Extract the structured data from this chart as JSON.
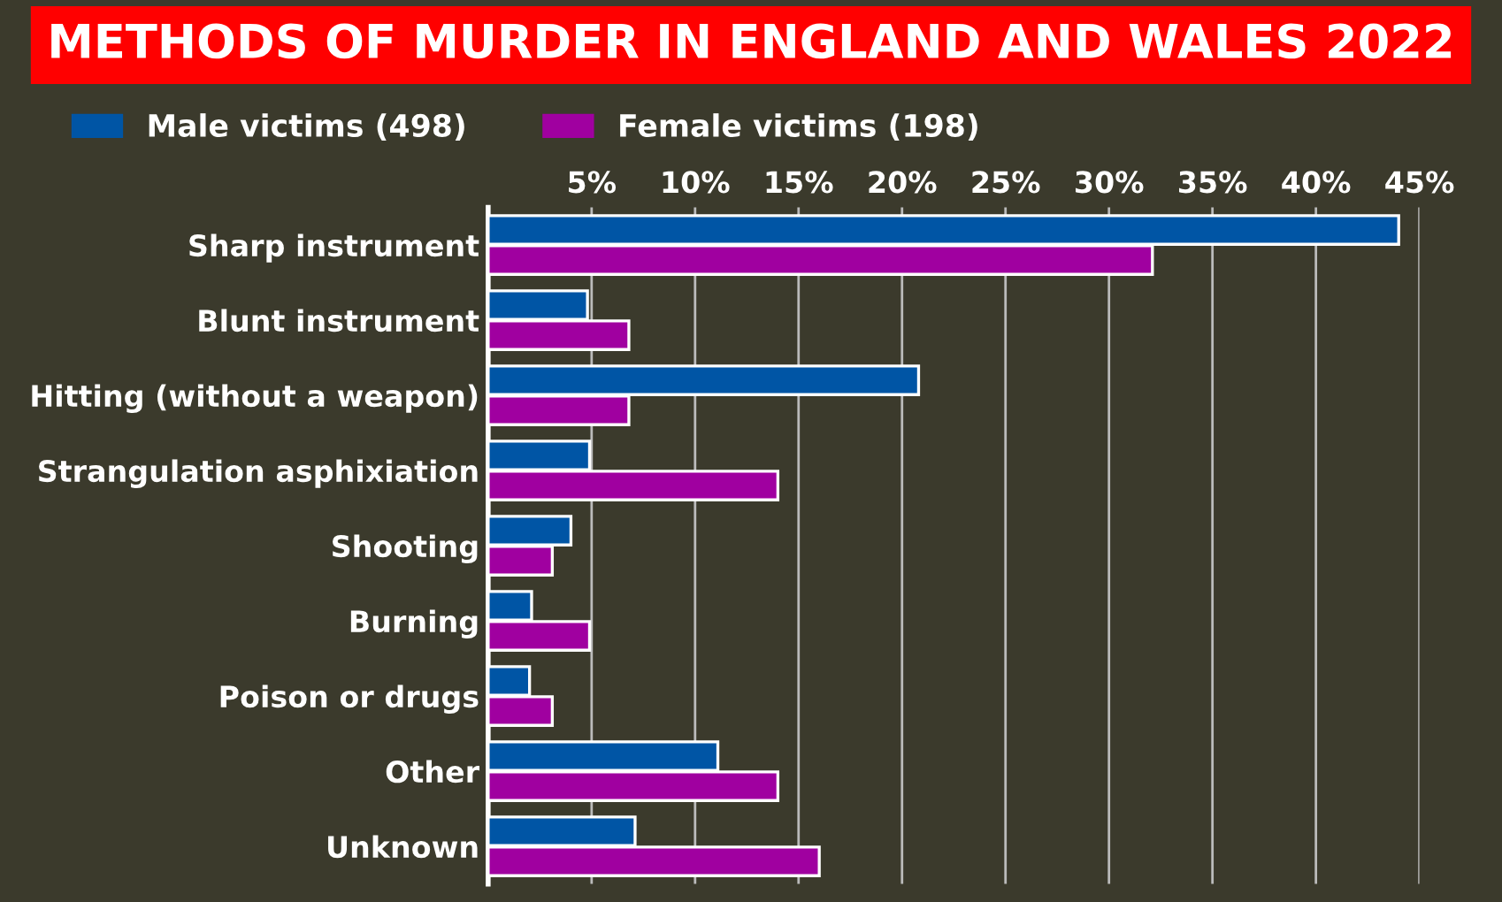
{
  "chart_data": {
    "type": "bar",
    "orientation": "horizontal",
    "title": "METHODS OF MURDER IN ENGLAND AND WALES 2022",
    "categories": [
      "Sharp instrument",
      "Blunt instrument",
      "Hitting (without a weapon)",
      "Strangulation asphixiation",
      "Shooting",
      "Burning",
      "Poison or drugs",
      "Other",
      "Unknown"
    ],
    "series": [
      {
        "name": "Male victims (498)",
        "color": "#0055a5",
        "values": [
          44,
          4.8,
          20.8,
          4.9,
          4.0,
          2.1,
          2.0,
          11.1,
          7.1
        ]
      },
      {
        "name": "Female victims (198)",
        "color": "#a000a0",
        "values": [
          32.1,
          6.8,
          6.8,
          14.0,
          3.1,
          4.9,
          3.1,
          14.0,
          16.0
        ]
      }
    ],
    "xlim": [
      0,
      45
    ],
    "xticks": [
      {
        "value": 5,
        "label": "5%"
      },
      {
        "value": 10,
        "label": "10%"
      },
      {
        "value": 15,
        "label": "15%"
      },
      {
        "value": 20,
        "label": "20%"
      },
      {
        "value": 25,
        "label": "25%"
      },
      {
        "value": 30,
        "label": "30%"
      },
      {
        "value": 35,
        "label": "35%"
      },
      {
        "value": 40,
        "label": "40%"
      },
      {
        "value": 45,
        "label": "45%"
      }
    ],
    "grid": "x",
    "legend": "top left"
  }
}
